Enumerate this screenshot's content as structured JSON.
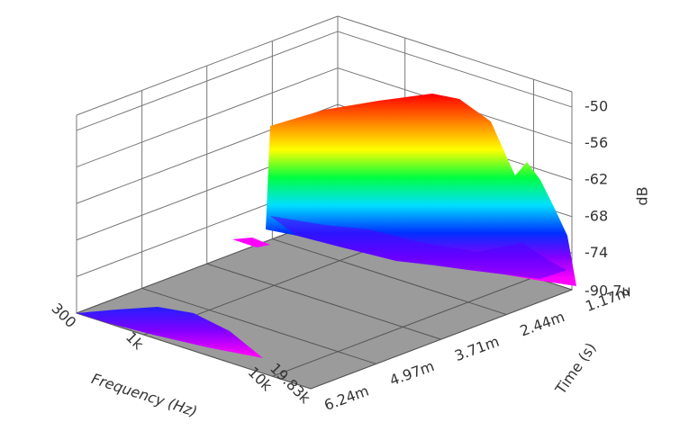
{
  "chart_data": {
    "type": "waterfall3d",
    "x_label": "Frequency (Hz)",
    "y_label": "Time (s)",
    "z_label": "dB",
    "xscale": "log",
    "xlim": [
      300,
      19830
    ],
    "xticks": [
      300,
      {
        "value": 1000,
        "label": "1k"
      },
      {
        "value": 10000,
        "label": "10k"
      },
      {
        "value": 19830,
        "label": "19.83k"
      }
    ],
    "ylim": [
      0.00117,
      0.00624
    ],
    "yticks": [
      {
        "value": 0.00117,
        "label": "1.17m"
      },
      {
        "value": 0.00244,
        "label": "2.44m"
      },
      {
        "value": 0.00371,
        "label": "3.71m"
      },
      {
        "value": 0.00497,
        "label": "4.97m"
      },
      {
        "value": 0.00624,
        "label": "6.24m"
      }
    ],
    "zlim": [
      -80,
      -47.5
    ],
    "zticks": [
      -50,
      -56,
      -62,
      -68,
      -74
    ],
    "z_floor_label": "-90.7u"
  }
}
